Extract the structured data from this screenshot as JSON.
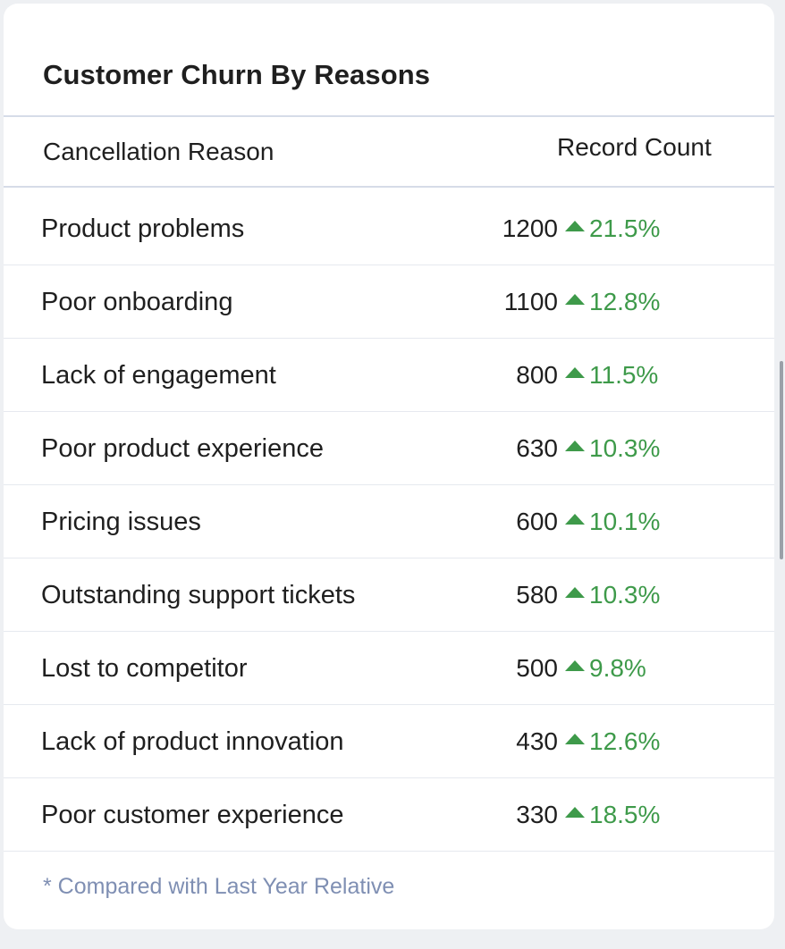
{
  "widget": {
    "title": "Customer Churn By Reasons",
    "columns": {
      "reason": "Cancellation Reason",
      "count": "Record Count"
    },
    "trend_icon": "triangle-up-icon",
    "trend_color": "#3e9a4a",
    "rows": [
      {
        "reason": "Product problems",
        "count": "1200",
        "change": "21.5%"
      },
      {
        "reason": "Poor onboarding",
        "count": "1100",
        "change": "12.8%"
      },
      {
        "reason": "Lack of engagement",
        "count": "800",
        "change": "11.5%"
      },
      {
        "reason": "Poor product experience",
        "count": "630",
        "change": "10.3%"
      },
      {
        "reason": "Pricing issues",
        "count": "600",
        "change": "10.1%"
      },
      {
        "reason": "Outstanding support tickets",
        "count": "580",
        "change": "10.3%"
      },
      {
        "reason": "Lost to competitor",
        "count": "500",
        "change": "9.8%"
      },
      {
        "reason": "Lack of product innovation",
        "count": "430",
        "change": "12.6%"
      },
      {
        "reason": "Poor customer experience",
        "count": "330",
        "change": "18.5%"
      }
    ],
    "footnote": "* Compared with Last Year Relative"
  }
}
